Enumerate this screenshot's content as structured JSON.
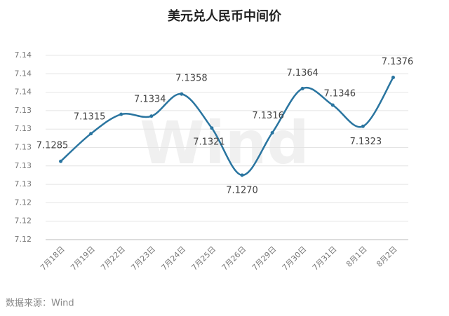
{
  "chart_data": {
    "type": "line",
    "title": "美元兑人民币中间价",
    "source": "数据来源：Wind",
    "watermark": "Wind",
    "categories": [
      "7月18日",
      "7月19日",
      "7月22日",
      "7月23日",
      "7月24日",
      "7月25日",
      "7月26日",
      "7月29日",
      "7月30日",
      "7月31日",
      "8月1日",
      "8月2日"
    ],
    "series": [
      {
        "values": [
          7.1285,
          7.1315,
          7.1336,
          7.1334,
          7.1358,
          7.1321,
          7.127,
          7.1316,
          7.1364,
          7.1346,
          7.1323,
          7.1376
        ],
        "value_labels": [
          "7.1285",
          "7.1315",
          null,
          "7.1334",
          "7.1358",
          "7.1321",
          "7.1270",
          "7.1316",
          "7.1364",
          "7.1346",
          "7.1323",
          "7.1376"
        ],
        "color": "#2a75a0"
      }
    ],
    "ylim": [
      7.12,
      7.14
    ],
    "yticks": [
      7.12,
      {
        "value": 7.122,
        "label": "7.12"
      },
      {
        "value": 7.124,
        "label": "7.12"
      },
      {
        "value": 7.126,
        "label": "7.13"
      },
      {
        "value": 7.128,
        "label": "7.13"
      },
      7.13,
      {
        "value": 7.132,
        "label": "7.13"
      },
      {
        "value": 7.134,
        "label": "7.13"
      },
      {
        "value": 7.136,
        "label": "7.14"
      },
      {
        "value": 7.138,
        "label": "7.14"
      },
      7.14
    ],
    "grid": true
  }
}
